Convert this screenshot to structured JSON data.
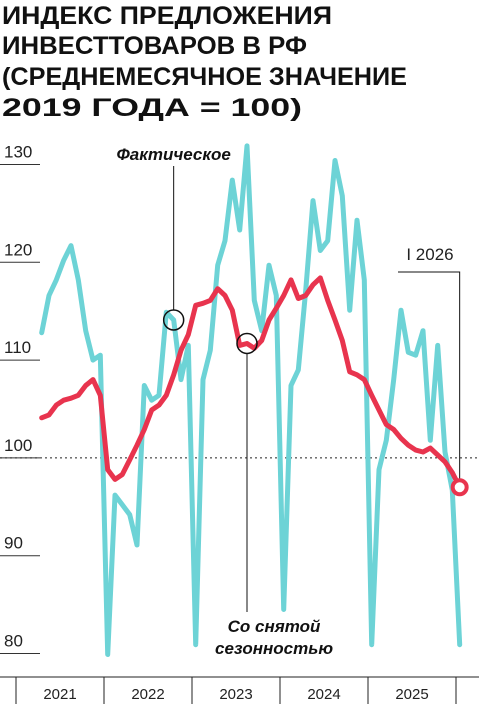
{
  "chart_data": {
    "type": "line",
    "title_lines": [
      "ИНДЕКС ПРЕДЛОЖЕНИЯ",
      "ИНВЕСТТОВАРОВ В РФ",
      "(СРЕДНЕМЕСЯЧНОЕ ЗНАЧЕНИЕ",
      "2019 ГОДА = 100)"
    ],
    "x_labels": [
      "2021",
      "2022",
      "2023",
      "2024",
      "2025"
    ],
    "series": [
      {
        "name": "Фактическое",
        "color": "#6dd3d6",
        "values": [
          112.8,
          116.6,
          118.2,
          120.2,
          121.7,
          118.2,
          113,
          110,
          110.5,
          79.9,
          96.2,
          95.2,
          94.2,
          91.1,
          107.4,
          105.9,
          106.4,
          114.9,
          114.1,
          108,
          111.5,
          80.9,
          108,
          111,
          119.7,
          122.2,
          128.4,
          123.3,
          131.9,
          116.1,
          113,
          119.7,
          116.6,
          84.5,
          107.4,
          109,
          117.1,
          126.3,
          121.2,
          122.2,
          130.4,
          126.8,
          115.1,
          124.3,
          118.2,
          80.9,
          98.8,
          101.8,
          108,
          115.1,
          110.8,
          110.5,
          113,
          101.8,
          111.5,
          100.6,
          96.7,
          80.9
        ]
      },
      {
        "name": "Со снятой сезонностью",
        "color": "#e8344e",
        "values": [
          104.1,
          104.4,
          105.4,
          105.9,
          106.1,
          106.4,
          107.4,
          108,
          106.4,
          98.8,
          97.8,
          98.3,
          99.8,
          101.3,
          102.9,
          104.9,
          105.4,
          106.4,
          108.5,
          111,
          112.6,
          115.6,
          115.8,
          116.1,
          117.3,
          116.6,
          115.1,
          111.5,
          111.7,
          111.2,
          112,
          114.1,
          115.3,
          116.6,
          118.2,
          116.3,
          116.6,
          117.7,
          118.4,
          116.1,
          114.1,
          112,
          108.8,
          108.5,
          108,
          106.4,
          104.9,
          103.4,
          102.9,
          102,
          101.3,
          100.8,
          100.6,
          101,
          100.3,
          99.6,
          98.5,
          97
        ]
      }
    ],
    "annotations": [
      "Фактическое",
      "Со снятой сезонностью",
      "I 2026"
    ],
    "ylim": [
      77.6,
      132.5
    ],
    "yticks": [
      80,
      90,
      100,
      110,
      120,
      130
    ],
    "reference_line": 100
  }
}
